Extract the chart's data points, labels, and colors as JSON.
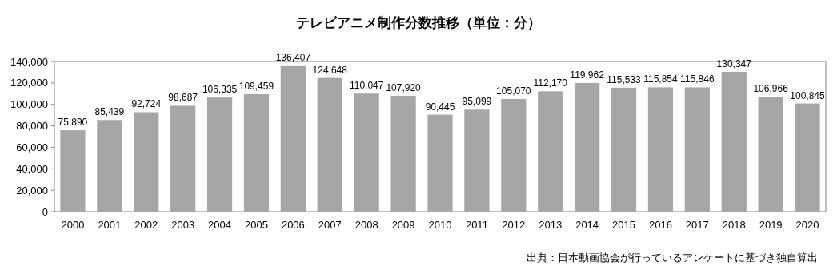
{
  "chart_data": {
    "type": "bar",
    "title": "テレビアニメ制作分数推移（単位：分）",
    "categories": [
      "2000",
      "2001",
      "2002",
      "2003",
      "2004",
      "2005",
      "2006",
      "2007",
      "2008",
      "2009",
      "2010",
      "2011",
      "2012",
      "2013",
      "2014",
      "2015",
      "2016",
      "2017",
      "2018",
      "2019",
      "2020"
    ],
    "values": [
      75890,
      85439,
      92724,
      98687,
      106335,
      109459,
      136407,
      124648,
      110047,
      107920,
      90445,
      95099,
      105070,
      112170,
      119962,
      115533,
      115854,
      115846,
      130347,
      106966,
      100845
    ],
    "color": "#a6a6a6",
    "ylim": [
      0,
      140000
    ],
    "yticks": [
      {
        "value": 0,
        "label": "0"
      },
      {
        "value": 20000,
        "label": "20,000"
      },
      {
        "value": 40000,
        "label": "40,000"
      },
      {
        "value": 60000,
        "label": "60,000"
      },
      {
        "value": 80000,
        "label": "80,000"
      },
      {
        "value": 100000,
        "label": "100,000"
      },
      {
        "value": 120000,
        "label": "120,000"
      },
      {
        "value": 140000,
        "label": "140,000"
      }
    ],
    "grid": false,
    "value_labels": [
      "75,890",
      "85,439",
      "92,724",
      "98,687",
      "106,335",
      "109,459",
      "136,407",
      "124,648",
      "110,047",
      "107,920",
      "90,445",
      "95,099",
      "105,070",
      "112,170",
      "119,962",
      "115,533",
      "115,854",
      "115,846",
      "130,347",
      "106,966",
      "100,845"
    ],
    "annotations": [
      "出典：日本動画協会が行っているアンケートに基づき独自算出"
    ]
  }
}
